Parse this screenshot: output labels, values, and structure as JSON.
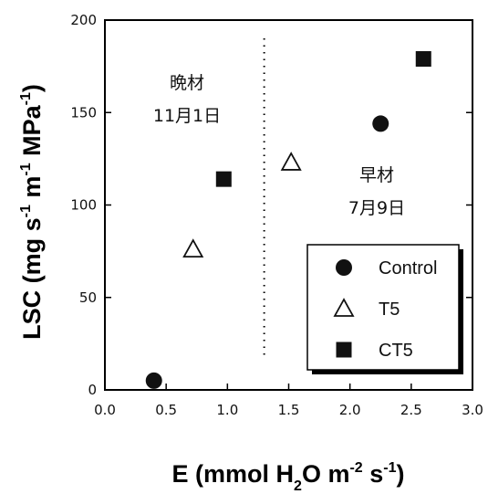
{
  "chart_data": {
    "type": "scatter",
    "xlabel": "E (mmol H2O m-2 s-1)",
    "ylabel": "LSC (mg s-1 m-1 MPa-1)",
    "xlim": [
      0.0,
      3.0
    ],
    "ylim": [
      0,
      200
    ],
    "x_ticks": [
      "0.0",
      "0.5",
      "1.0",
      "1.5",
      "2.0",
      "2.5",
      "3.0"
    ],
    "y_ticks": [
      "0",
      "50",
      "100",
      "150",
      "200"
    ],
    "grid": false,
    "legend_position": "bottom-right",
    "series": [
      {
        "name": "Control",
        "marker": "filled-circle",
        "points": [
          [
            0.4,
            5
          ],
          [
            2.25,
            144
          ]
        ]
      },
      {
        "name": "T5",
        "marker": "open-triangle",
        "points": [
          [
            0.72,
            76
          ],
          [
            1.52,
            123
          ]
        ]
      },
      {
        "name": "CT5",
        "marker": "filled-square",
        "points": [
          [
            0.97,
            114
          ],
          [
            2.6,
            179
          ]
        ]
      }
    ],
    "annotations": [
      {
        "line1": "晩材",
        "line2": "11月1日"
      },
      {
        "line1": "早材",
        "line2": "7月9日"
      }
    ],
    "reference_line": {
      "x": 1.3,
      "style": "dotted"
    }
  }
}
